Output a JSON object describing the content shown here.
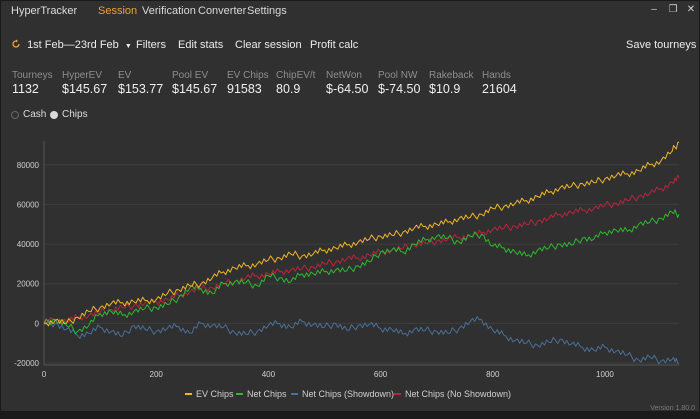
{
  "app": {
    "name": "HyperTracker",
    "menu": [
      "Session",
      "Verification",
      "Converter",
      "Settings"
    ],
    "active_menu": "Session",
    "window_controls": [
      "minimize-icon",
      "restore-icon",
      "close-icon"
    ],
    "version": "Version 1.80.0"
  },
  "toolbar": {
    "date_range": "1st Feb—23rd Feb",
    "filters": "Filters",
    "edit_stats": "Edit stats",
    "clear_session": "Clear session",
    "profit_calc": "Profit calc",
    "save_tourneys": "Save tourneys"
  },
  "stats": [
    {
      "label": "Tourneys",
      "value": "1132"
    },
    {
      "label": "HyperEV",
      "value": "$145.67"
    },
    {
      "label": "EV",
      "value": "$153.77"
    },
    {
      "label": "Pool EV",
      "value": "$145.67"
    },
    {
      "label": "EV Chips",
      "value": "91583"
    },
    {
      "label": "ChipEV/t",
      "value": "80.9"
    },
    {
      "label": "NetWon",
      "value": "$-64.50"
    },
    {
      "label": "Pool NW",
      "value": "$-74.50"
    },
    {
      "label": "Rakeback",
      "value": "$10.9"
    },
    {
      "label": "Hands",
      "value": "21604"
    }
  ],
  "mode": {
    "options": [
      "Cash",
      "Chips"
    ],
    "selected": "Chips"
  },
  "colors": {
    "ev_chips": "#f0b429",
    "net_chips": "#2db82d",
    "showdown": "#4a6f99",
    "no_showdown": "#b8253d",
    "accent": "#e8a33c",
    "background": "#303030"
  },
  "chart_data": {
    "type": "line",
    "x_ticks": [
      0,
      200,
      400,
      600,
      800,
      1000
    ],
    "y_ticks": [
      -20000,
      0,
      20000,
      40000,
      60000,
      80000
    ],
    "xlim": [
      0,
      1132
    ],
    "ylim": [
      -21000,
      92000
    ],
    "grid": "horizontal",
    "legend_position": "bottom",
    "series": [
      {
        "name": "EV Chips",
        "color": "#f0b429",
        "x": [
          0,
          20,
          40,
          60,
          80,
          100,
          120,
          140,
          160,
          180,
          200,
          220,
          240,
          260,
          280,
          300,
          320,
          340,
          360,
          380,
          400,
          420,
          440,
          460,
          480,
          500,
          520,
          540,
          560,
          580,
          600,
          620,
          640,
          660,
          680,
          700,
          720,
          740,
          760,
          780,
          800,
          820,
          840,
          860,
          880,
          900,
          920,
          940,
          960,
          980,
          1000,
          1020,
          1040,
          1060,
          1080,
          1100,
          1120,
          1132
        ],
        "y": [
          0,
          1500,
          0,
          3000,
          6000,
          8000,
          10000,
          10500,
          11000,
          11500,
          12000,
          15000,
          17000,
          19000,
          20000,
          23000,
          26000,
          28000,
          29000,
          30000,
          32000,
          33000,
          35000,
          34000,
          35000,
          37000,
          38000,
          39500,
          41000,
          42500,
          44000,
          44500,
          46000,
          48000,
          49000,
          50000,
          51000,
          53000,
          53500,
          55000,
          58000,
          59000,
          60500,
          62000,
          64000,
          66000,
          68500,
          69000,
          70500,
          71000,
          73000,
          74500,
          75500,
          77000,
          80000,
          82000,
          87000,
          91583
        ]
      },
      {
        "name": "Net Chips",
        "color": "#2db82d",
        "x": [
          0,
          20,
          40,
          60,
          80,
          100,
          120,
          140,
          160,
          180,
          200,
          220,
          240,
          260,
          280,
          300,
          320,
          340,
          360,
          380,
          400,
          420,
          440,
          460,
          480,
          500,
          520,
          540,
          560,
          580,
          600,
          620,
          640,
          660,
          680,
          700,
          720,
          740,
          760,
          780,
          800,
          820,
          840,
          860,
          880,
          900,
          920,
          940,
          960,
          980,
          1000,
          1020,
          1040,
          1060,
          1080,
          1100,
          1120,
          1132
        ],
        "y": [
          0,
          2000,
          -1000,
          -4000,
          -1000,
          5000,
          6000,
          4000,
          6000,
          7500,
          8000,
          9500,
          13000,
          18000,
          17500,
          15000,
          20000,
          21000,
          20500,
          19000,
          24000,
          23000,
          21000,
          25000,
          25000,
          26000,
          27000,
          26500,
          29000,
          31000,
          36000,
          37000,
          36000,
          40000,
          42000,
          44000,
          43000,
          41000,
          44000,
          45000,
          39000,
          38000,
          36000,
          34000,
          37000,
          38000,
          40000,
          39500,
          43000,
          42500,
          46000,
          47000,
          46500,
          50000,
          51000,
          53000,
          56000,
          55000
        ]
      },
      {
        "name": "Net Chips (Showdown)",
        "color": "#4a6f99",
        "x": [
          0,
          20,
          40,
          60,
          80,
          100,
          120,
          140,
          160,
          180,
          200,
          220,
          240,
          260,
          280,
          300,
          320,
          340,
          360,
          380,
          400,
          420,
          440,
          460,
          480,
          500,
          520,
          540,
          560,
          580,
          600,
          620,
          640,
          660,
          680,
          700,
          720,
          740,
          760,
          780,
          800,
          820,
          840,
          860,
          880,
          900,
          920,
          940,
          960,
          980,
          1000,
          1020,
          1040,
          1060,
          1080,
          1100,
          1120,
          1132
        ],
        "y": [
          0,
          0,
          -3000,
          -6000,
          -5000,
          -2000,
          -4000,
          -6500,
          -1000,
          -3000,
          -4000,
          -2500,
          -1500,
          -5000,
          0,
          -1000,
          -2000,
          -4500,
          -5500,
          -4000,
          -1000,
          0,
          -2000,
          1000,
          -500,
          -2000,
          0,
          -3500,
          -1000,
          -500,
          -2500,
          -3000,
          -5500,
          -3000,
          -3500,
          -4000,
          -5000,
          -2500,
          1000,
          2000,
          -3500,
          -6000,
          -8500,
          -10000,
          -11000,
          -9500,
          -8000,
          -10500,
          -12000,
          -13500,
          -12000,
          -14000,
          -16000,
          -18500,
          -17000,
          -19000,
          -18000,
          -20500
        ]
      },
      {
        "name": "Net Chips (No Showdown)",
        "color": "#b8253d",
        "x": [
          0,
          20,
          40,
          60,
          80,
          100,
          120,
          140,
          160,
          180,
          200,
          220,
          240,
          260,
          280,
          300,
          320,
          340,
          360,
          380,
          400,
          420,
          440,
          460,
          480,
          500,
          520,
          540,
          560,
          580,
          600,
          620,
          640,
          660,
          680,
          700,
          720,
          740,
          760,
          780,
          800,
          820,
          840,
          860,
          880,
          900,
          920,
          940,
          960,
          980,
          1000,
          1020,
          1040,
          1060,
          1080,
          1100,
          1120,
          1132
        ],
        "y": [
          0,
          2000,
          1000,
          3000,
          4000,
          5500,
          7000,
          8000,
          9000,
          10000,
          11000,
          12000,
          14000,
          16000,
          17500,
          18000,
          20000,
          21000,
          23000,
          24000,
          25000,
          26000,
          27000,
          27500,
          28500,
          30000,
          31000,
          32500,
          33000,
          34500,
          36000,
          37000,
          38000,
          39500,
          40500,
          41500,
          42500,
          43500,
          44000,
          45500,
          47500,
          48000,
          49000,
          50000,
          51500,
          53000,
          55000,
          56000,
          57000,
          58000,
          59500,
          60500,
          62000,
          64000,
          65500,
          68000,
          71000,
          73500
        ]
      }
    ]
  }
}
